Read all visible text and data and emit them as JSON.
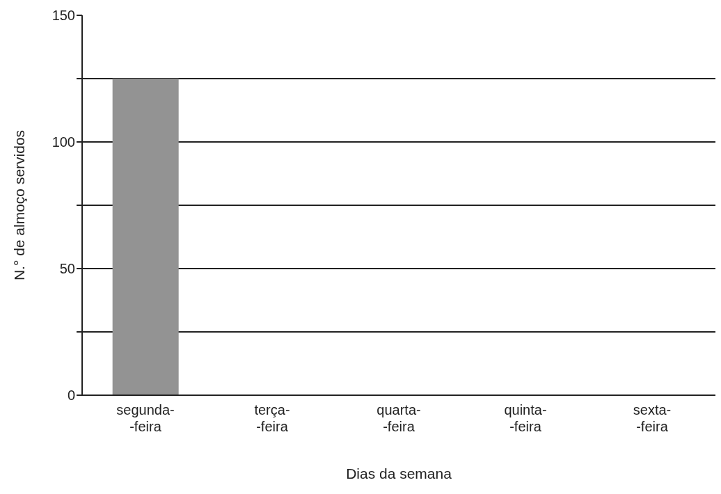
{
  "chart_data": {
    "type": "bar",
    "xlabel": "Dias da semana",
    "ylabel": "N.° de almoço servidos",
    "categories": [
      "segunda-\n-feira",
      "terça-\n-feira",
      "quarta-\n-feira",
      "quinta-\n-feira",
      "sexta-\n-feira"
    ],
    "values": [
      125,
      null,
      null,
      null,
      null
    ],
    "color": "#939393",
    "ylim": [
      0,
      150
    ],
    "yticks": [
      0,
      {
        "value": 25,
        "label": null
      },
      50,
      {
        "value": 75,
        "label": null
      },
      100,
      {
        "value": 125,
        "label": null
      },
      150
    ],
    "grid": "y"
  }
}
